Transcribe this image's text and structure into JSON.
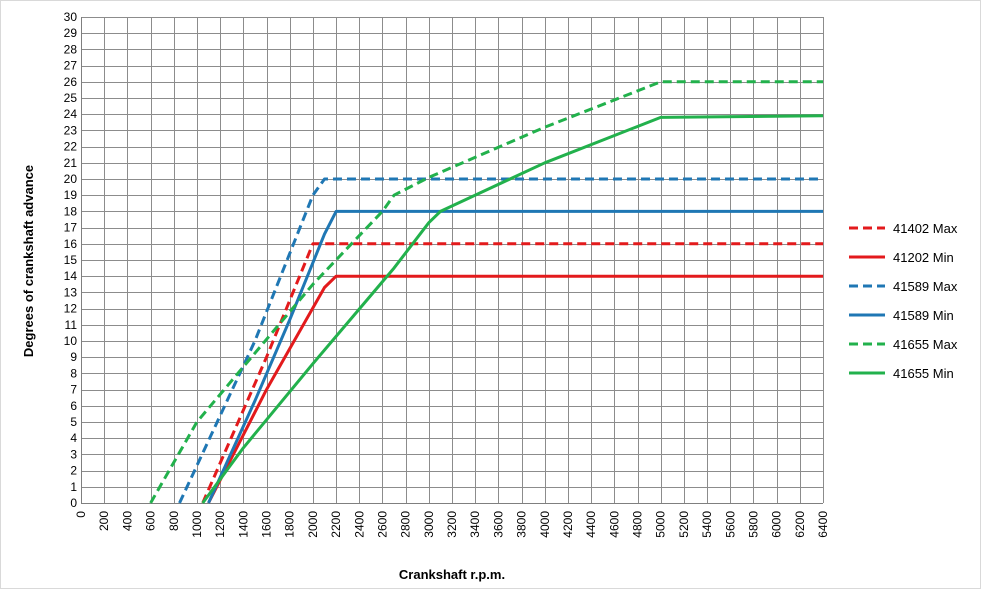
{
  "chart_data": {
    "type": "line",
    "title": "",
    "xlabel": "Crankshaft r.p.m.",
    "ylabel": "Degrees of crankshaft advance",
    "xlim": [
      0,
      6400
    ],
    "ylim": [
      0,
      30
    ],
    "x_tick_step": 200,
    "y_tick_step": 1,
    "grid": true,
    "legend_position": "right",
    "series": [
      {
        "name": "41402 Max",
        "color": "#e31a1c",
        "dash": "dashed",
        "points": [
          [
            1050,
            0
          ],
          [
            1600,
            9
          ],
          [
            2000,
            16
          ],
          [
            6400,
            16
          ]
        ]
      },
      {
        "name": "41202 Min",
        "color": "#e31a1c",
        "dash": "solid",
        "points": [
          [
            1100,
            0
          ],
          [
            1600,
            7
          ],
          [
            2100,
            13.3
          ],
          [
            2200,
            14
          ],
          [
            6400,
            14
          ]
        ]
      },
      {
        "name": "41589 Max",
        "color": "#1f77b4",
        "dash": "dashed",
        "points": [
          [
            850,
            0
          ],
          [
            1500,
            10
          ],
          [
            2000,
            19
          ],
          [
            2100,
            20
          ],
          [
            6400,
            20
          ]
        ]
      },
      {
        "name": "41589 Min",
        "color": "#1f77b4",
        "dash": "solid",
        "points": [
          [
            1100,
            0
          ],
          [
            1500,
            6.3
          ],
          [
            1800,
            11.3
          ],
          [
            2100,
            16.6
          ],
          [
            2200,
            18
          ],
          [
            6400,
            18
          ]
        ]
      },
      {
        "name": "41655 Max",
        "color": "#22b14c",
        "dash": "dashed",
        "points": [
          [
            600,
            0
          ],
          [
            1000,
            5
          ],
          [
            2000,
            13.5
          ],
          [
            2600,
            18
          ],
          [
            2700,
            19
          ],
          [
            3000,
            20.1
          ],
          [
            4000,
            23.2
          ],
          [
            5000,
            26
          ],
          [
            6400,
            26
          ]
        ]
      },
      {
        "name": "41655 Min",
        "color": "#22b14c",
        "dash": "solid",
        "points": [
          [
            1050,
            0
          ],
          [
            1400,
            3.4
          ],
          [
            2000,
            8.6
          ],
          [
            2700,
            14.5
          ],
          [
            3000,
            17.3
          ],
          [
            3100,
            18
          ],
          [
            4000,
            21
          ],
          [
            5000,
            23.8
          ],
          [
            6400,
            23.9
          ]
        ]
      }
    ]
  }
}
